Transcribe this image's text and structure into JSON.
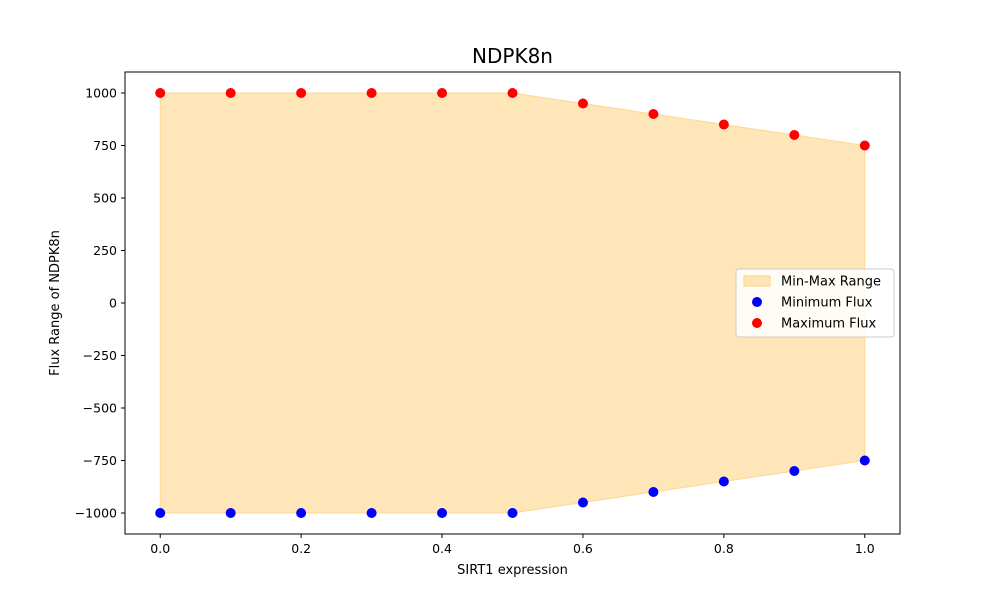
{
  "chart_data": {
    "type": "scatter",
    "title": "NDPK8n",
    "xlabel": "SIRT1 expression",
    "ylabel": "Flux Range of NDPK8n",
    "xlim": [
      -0.05,
      1.05
    ],
    "ylim": [
      -1100,
      1100
    ],
    "xticks": [
      0.0,
      0.2,
      0.4,
      0.6,
      0.8,
      1.0
    ],
    "xtick_labels": [
      "0.0",
      "0.2",
      "0.4",
      "0.6",
      "0.8",
      "1.0"
    ],
    "yticks": [
      1000,
      750,
      500,
      250,
      0,
      -250,
      -500,
      -750,
      -1000
    ],
    "ytick_labels": [
      "1000",
      "750",
      "500",
      "250",
      "0",
      "−250",
      "−500",
      "−750",
      "−1000"
    ],
    "x": [
      0.0,
      0.1,
      0.2,
      0.3,
      0.4,
      0.5,
      0.6,
      0.7,
      0.8,
      0.9,
      1.0
    ],
    "series": [
      {
        "name": "Min-Max Range",
        "kind": "area",
        "color": "#ffd27f"
      },
      {
        "name": "Minimum Flux",
        "kind": "scatter",
        "color": "#0000ff",
        "values": [
          -1000,
          -1000,
          -1000,
          -1000,
          -1000,
          -1000,
          -950,
          -900,
          -850,
          -800,
          -750
        ]
      },
      {
        "name": "Maximum Flux",
        "kind": "scatter",
        "color": "#ff0000",
        "values": [
          1000,
          1000,
          1000,
          1000,
          1000,
          1000,
          950,
          900,
          850,
          800,
          750
        ]
      }
    ],
    "grid": false,
    "legend_position": "center-right"
  }
}
